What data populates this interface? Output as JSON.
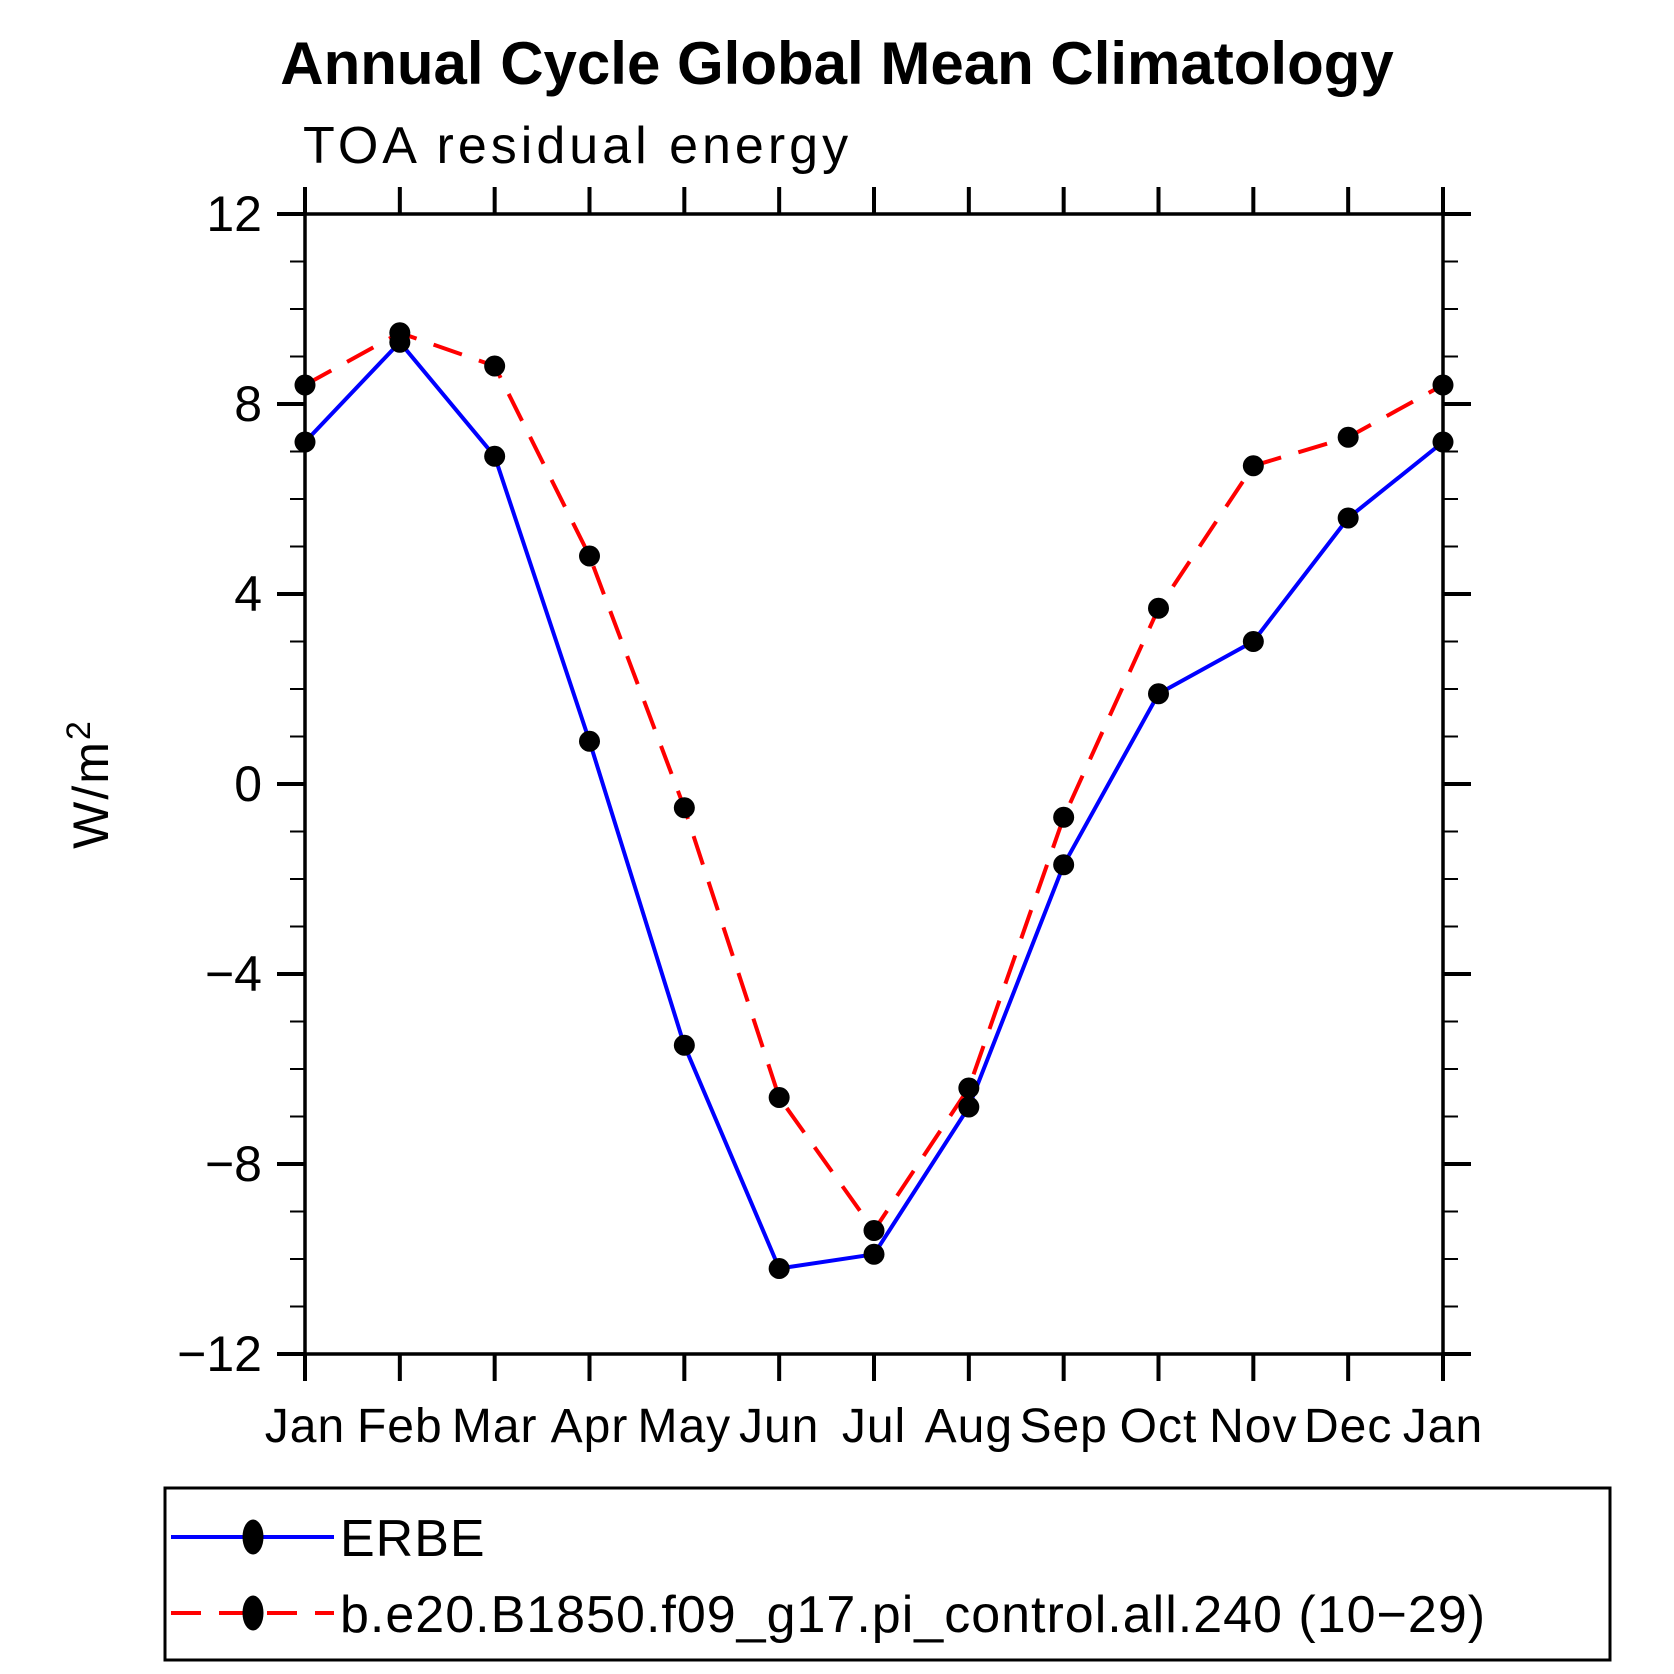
{
  "chart_data": {
    "type": "line",
    "title": "Annual Cycle Global Mean Climatology",
    "subtitle": "TOA residual energy",
    "ylabel": "W/m2",
    "ylabel_base": "W/m",
    "ylabel_sup": "2",
    "categories": [
      "Jan",
      "Feb",
      "Mar",
      "Apr",
      "May",
      "Jun",
      "Jul",
      "Aug",
      "Sep",
      "Oct",
      "Nov",
      "Dec",
      "Jan"
    ],
    "series": [
      {
        "name": "ERBE",
        "color": "#0000ff",
        "line_style": "solid",
        "marker": "filled-circle",
        "values": [
          7.2,
          9.3,
          6.9,
          0.9,
          -5.5,
          -10.2,
          -9.9,
          -6.8,
          -1.7,
          1.9,
          3.0,
          5.6,
          7.2
        ]
      },
      {
        "name": "b.e20.B1850.f09_g17.pi_control.all.240 (10−29)",
        "color": "#ff0000",
        "line_style": "dashed",
        "marker": "filled-circle",
        "values": [
          8.4,
          9.5,
          8.8,
          4.8,
          -0.5,
          -6.6,
          -9.4,
          -6.4,
          -0.7,
          3.7,
          6.7,
          7.3,
          8.4
        ]
      }
    ],
    "marker_color": "#000000",
    "ylim": [
      -12,
      12
    ],
    "yticks_major": [
      -12,
      -8,
      -4,
      0,
      4,
      8,
      12
    ],
    "ytick_minor_step": 1,
    "grid": false,
    "legend_position": "bottom"
  }
}
